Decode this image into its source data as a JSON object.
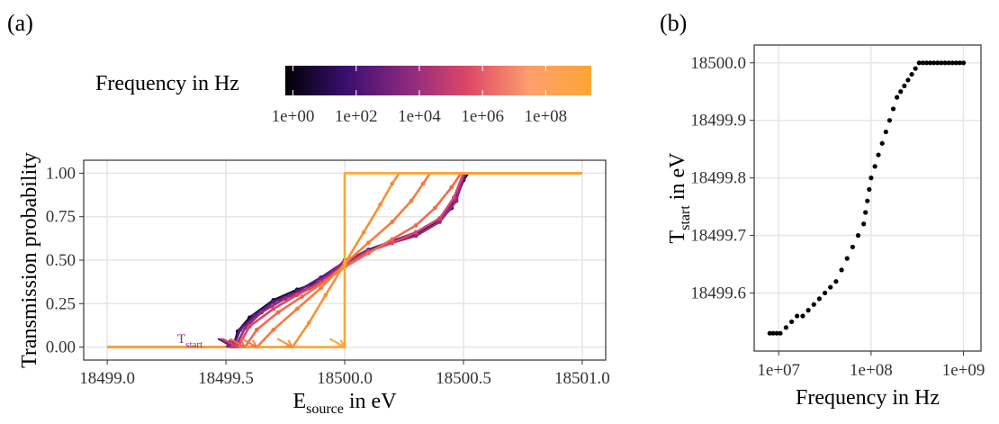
{
  "chart_data": [
    {
      "panel_label": "(a)",
      "type": "line",
      "xlabel_main": "E",
      "xlabel_sub": "source",
      "xlabel_rest": " in eV",
      "ylabel": "Transmission probability",
      "xlim": [
        18499.0,
        18501.0
      ],
      "ylim": [
        0.0,
        1.0
      ],
      "x_ticks": [
        "18499.0",
        "18499.5",
        "18500.0",
        "18500.5",
        "18501.0"
      ],
      "x_tick_values": [
        18499.0,
        18499.5,
        18500.0,
        18500.5,
        18501.0
      ],
      "y_ticks": [
        "0.00",
        "0.25",
        "0.50",
        "0.75",
        "1.00"
      ],
      "y_tick_values": [
        0.0,
        0.25,
        0.5,
        0.75,
        1.0
      ],
      "grid": true,
      "annotation": {
        "main": "T",
        "sub": "start"
      },
      "legend": {
        "title": "Frequency in Hz",
        "type": "colorbar",
        "palette": [
          "#000004",
          "#3b0f70",
          "#8c2981",
          "#de4968",
          "#fe9f6d",
          "#fca636"
        ],
        "labels": [
          "1e+00",
          "1e+02",
          "1e+04",
          "1e+06",
          "1e+08"
        ]
      },
      "series": [
        {
          "color": "#1a0b3a",
          "t_start": 18499.53,
          "points": [
            [
              18499.0,
              0.0
            ],
            [
              18499.53,
              0.0
            ],
            [
              18499.55,
              0.09
            ],
            [
              18499.6,
              0.17
            ],
            [
              18499.7,
              0.27
            ],
            [
              18499.8,
              0.33
            ],
            [
              18499.9,
              0.38
            ],
            [
              18500.0,
              0.48
            ],
            [
              18500.1,
              0.55
            ],
            [
              18500.2,
              0.6
            ],
            [
              18500.3,
              0.65
            ],
            [
              18500.4,
              0.73
            ],
            [
              18500.45,
              0.8
            ],
            [
              18500.5,
              0.96
            ],
            [
              18500.52,
              1.0
            ],
            [
              18501.0,
              1.0
            ]
          ]
        },
        {
          "color": "#5b1e7a",
          "t_start": 18499.53,
          "points": [
            [
              18499.0,
              0.0
            ],
            [
              18499.53,
              0.0
            ],
            [
              18499.56,
              0.1
            ],
            [
              18499.62,
              0.18
            ],
            [
              18499.7,
              0.26
            ],
            [
              18499.8,
              0.32
            ],
            [
              18499.9,
              0.4
            ],
            [
              18500.0,
              0.49
            ],
            [
              18500.1,
              0.56
            ],
            [
              18500.2,
              0.61
            ],
            [
              18500.3,
              0.66
            ],
            [
              18500.4,
              0.74
            ],
            [
              18500.47,
              0.85
            ],
            [
              18500.51,
              1.0
            ],
            [
              18501.0,
              1.0
            ]
          ]
        },
        {
          "color": "#9a2a7e",
          "t_start": 18499.54,
          "points": [
            [
              18499.0,
              0.0
            ],
            [
              18499.54,
              0.0
            ],
            [
              18499.58,
              0.11
            ],
            [
              18499.65,
              0.2
            ],
            [
              18499.75,
              0.28
            ],
            [
              18499.85,
              0.34
            ],
            [
              18499.95,
              0.43
            ],
            [
              18500.0,
              0.5
            ],
            [
              18500.1,
              0.55
            ],
            [
              18500.2,
              0.6
            ],
            [
              18500.3,
              0.64
            ],
            [
              18500.4,
              0.72
            ],
            [
              18500.47,
              0.84
            ],
            [
              18500.5,
              1.0
            ],
            [
              18501.0,
              1.0
            ]
          ]
        },
        {
          "color": "#d8456a",
          "t_start": 18499.55,
          "points": [
            [
              18499.0,
              0.0
            ],
            [
              18499.55,
              0.0
            ],
            [
              18499.6,
              0.12
            ],
            [
              18499.7,
              0.22
            ],
            [
              18499.8,
              0.3
            ],
            [
              18499.9,
              0.37
            ],
            [
              18500.0,
              0.47
            ],
            [
              18500.1,
              0.55
            ],
            [
              18500.2,
              0.6
            ],
            [
              18500.3,
              0.66
            ],
            [
              18500.4,
              0.74
            ],
            [
              18500.46,
              0.86
            ],
            [
              18500.5,
              1.0
            ],
            [
              18501.0,
              1.0
            ]
          ]
        },
        {
          "color": "#f06a4f",
          "t_start": 18499.58,
          "points": [
            [
              18499.0,
              0.0
            ],
            [
              18499.58,
              0.0
            ],
            [
              18499.63,
              0.1
            ],
            [
              18499.72,
              0.2
            ],
            [
              18499.82,
              0.29
            ],
            [
              18499.92,
              0.38
            ],
            [
              18500.0,
              0.46
            ],
            [
              18500.1,
              0.54
            ],
            [
              18500.2,
              0.62
            ],
            [
              18500.3,
              0.7
            ],
            [
              18500.38,
              0.8
            ],
            [
              18500.45,
              0.92
            ],
            [
              18500.49,
              1.0
            ],
            [
              18501.0,
              1.0
            ]
          ]
        },
        {
          "color": "#f57d3d",
          "t_start": 18499.63,
          "points": [
            [
              18499.0,
              0.0
            ],
            [
              18499.63,
              0.0
            ],
            [
              18499.7,
              0.1
            ],
            [
              18499.8,
              0.22
            ],
            [
              18499.9,
              0.34
            ],
            [
              18500.0,
              0.48
            ],
            [
              18500.1,
              0.6
            ],
            [
              18500.2,
              0.72
            ],
            [
              18500.28,
              0.84
            ],
            [
              18500.33,
              0.94
            ],
            [
              18500.36,
              1.0
            ],
            [
              18501.0,
              1.0
            ]
          ]
        },
        {
          "color": "#f98f35",
          "t_start": 18499.78,
          "points": [
            [
              18499.0,
              0.0
            ],
            [
              18499.78,
              0.0
            ],
            [
              18499.85,
              0.14
            ],
            [
              18499.92,
              0.3
            ],
            [
              18500.0,
              0.48
            ],
            [
              18500.08,
              0.66
            ],
            [
              18500.15,
              0.82
            ],
            [
              18500.2,
              0.94
            ],
            [
              18500.23,
              1.0
            ],
            [
              18501.0,
              1.0
            ]
          ]
        },
        {
          "color": "#fca636",
          "t_start": 18500.0,
          "points": [
            [
              18499.0,
              0.0
            ],
            [
              18500.0,
              0.0
            ],
            [
              18500.0,
              1.0
            ],
            [
              18501.0,
              1.0
            ]
          ]
        }
      ]
    },
    {
      "panel_label": "(b)",
      "type": "scatter",
      "xlabel": "Frequency in Hz",
      "ylabel_main": "T",
      "ylabel_sub": "start",
      "ylabel_rest": " in eV",
      "x_scale": "log",
      "xlim": [
        7000000,
        1200000000
      ],
      "ylim": [
        18499.515,
        18500.015
      ],
      "x_ticks": [
        "1e+07",
        "1e+08",
        "1e+09"
      ],
      "x_tick_values": [
        10000000,
        100000000,
        1000000000
      ],
      "y_ticks": [
        "18499.6",
        "18499.7",
        "18499.8",
        "18499.9",
        "18500.0"
      ],
      "y_tick_values": [
        18499.6,
        18499.7,
        18499.8,
        18499.9,
        18500.0
      ],
      "grid": true,
      "point_color": "#000000",
      "points": [
        [
          8000000,
          18499.53
        ],
        [
          8700000,
          18499.53
        ],
        [
          9500000,
          18499.53
        ],
        [
          10400000,
          18499.53
        ],
        [
          12000000,
          18499.54
        ],
        [
          13800000,
          18499.55
        ],
        [
          15800000,
          18499.56
        ],
        [
          18200000,
          18499.56
        ],
        [
          20900000,
          18499.57
        ],
        [
          24000000,
          18499.58
        ],
        [
          27500000,
          18499.59
        ],
        [
          31600000,
          18499.6
        ],
        [
          36300000,
          18499.61
        ],
        [
          41700000,
          18499.62
        ],
        [
          47900000,
          18499.64
        ],
        [
          55000000,
          18499.66
        ],
        [
          63100000,
          18499.68
        ],
        [
          72400000,
          18499.7
        ],
        [
          83200000,
          18499.72
        ],
        [
          87000000,
          18499.74
        ],
        [
          91200000,
          18499.76
        ],
        [
          95500000,
          18499.78
        ],
        [
          100000000,
          18499.8
        ],
        [
          110000000,
          18499.82
        ],
        [
          120000000,
          18499.84
        ],
        [
          131800000,
          18499.86
        ],
        [
          144500000,
          18499.88
        ],
        [
          158500000,
          18499.9
        ],
        [
          173800000,
          18499.92
        ],
        [
          190500000,
          18499.94
        ],
        [
          208900000,
          18499.95
        ],
        [
          229100000,
          18499.96
        ],
        [
          251200000,
          18499.97
        ],
        [
          275400000,
          18499.98
        ],
        [
          302000000,
          18499.99
        ],
        [
          331100000,
          18500.0
        ],
        [
          363100000,
          18500.0
        ],
        [
          398100000,
          18500.0
        ],
        [
          436500000,
          18500.0
        ],
        [
          478600000,
          18500.0
        ],
        [
          524800000,
          18500.0
        ],
        [
          575400000,
          18500.0
        ],
        [
          631000000,
          18500.0
        ],
        [
          691800000,
          18500.0
        ],
        [
          758600000,
          18500.0
        ],
        [
          831800000,
          18500.0
        ],
        [
          912000000,
          18500.0
        ],
        [
          1000000000,
          18500.0
        ]
      ]
    }
  ]
}
